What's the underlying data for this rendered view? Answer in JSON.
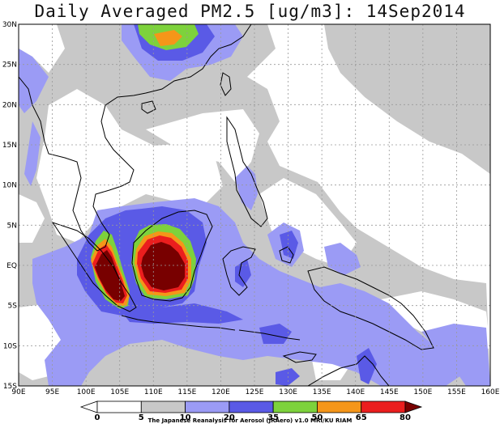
{
  "title": "Daily Averaged PM2.5 [ug/m3]: 14Sep2014",
  "lon_ticks": [
    "90E",
    "95E",
    "100E",
    "105E",
    "110E",
    "115E",
    "120E",
    "125E",
    "130E",
    "135E",
    "140E",
    "145E",
    "150E",
    "155E",
    "160E"
  ],
  "lat_ticks": [
    "30N",
    "25N",
    "20N",
    "15N",
    "10N",
    "5N",
    "EQ",
    "5S",
    "10S",
    "15S"
  ],
  "colorbar": {
    "levels": [
      "0",
      "5",
      "10",
      "20",
      "35",
      "50",
      "65",
      "80"
    ],
    "colors": [
      "#ffffff",
      "#ffffff",
      "#c8c8c8",
      "#9b9bf5",
      "#5a5ae6",
      "#7dd23c",
      "#f59619",
      "#eb1e1e",
      "#780000"
    ]
  },
  "credit": "The Japanese Reanalysis for Aerosol (JRAero) v1.0 MRI/KU RIAM",
  "colors": {
    "light_gray": "#c8c8c8",
    "light_blue": "#9b9bf5",
    "blue": "#5a5ae6",
    "green": "#7dd23c",
    "orange": "#f59619",
    "red": "#eb1e1e",
    "dark_red": "#780000"
  }
}
